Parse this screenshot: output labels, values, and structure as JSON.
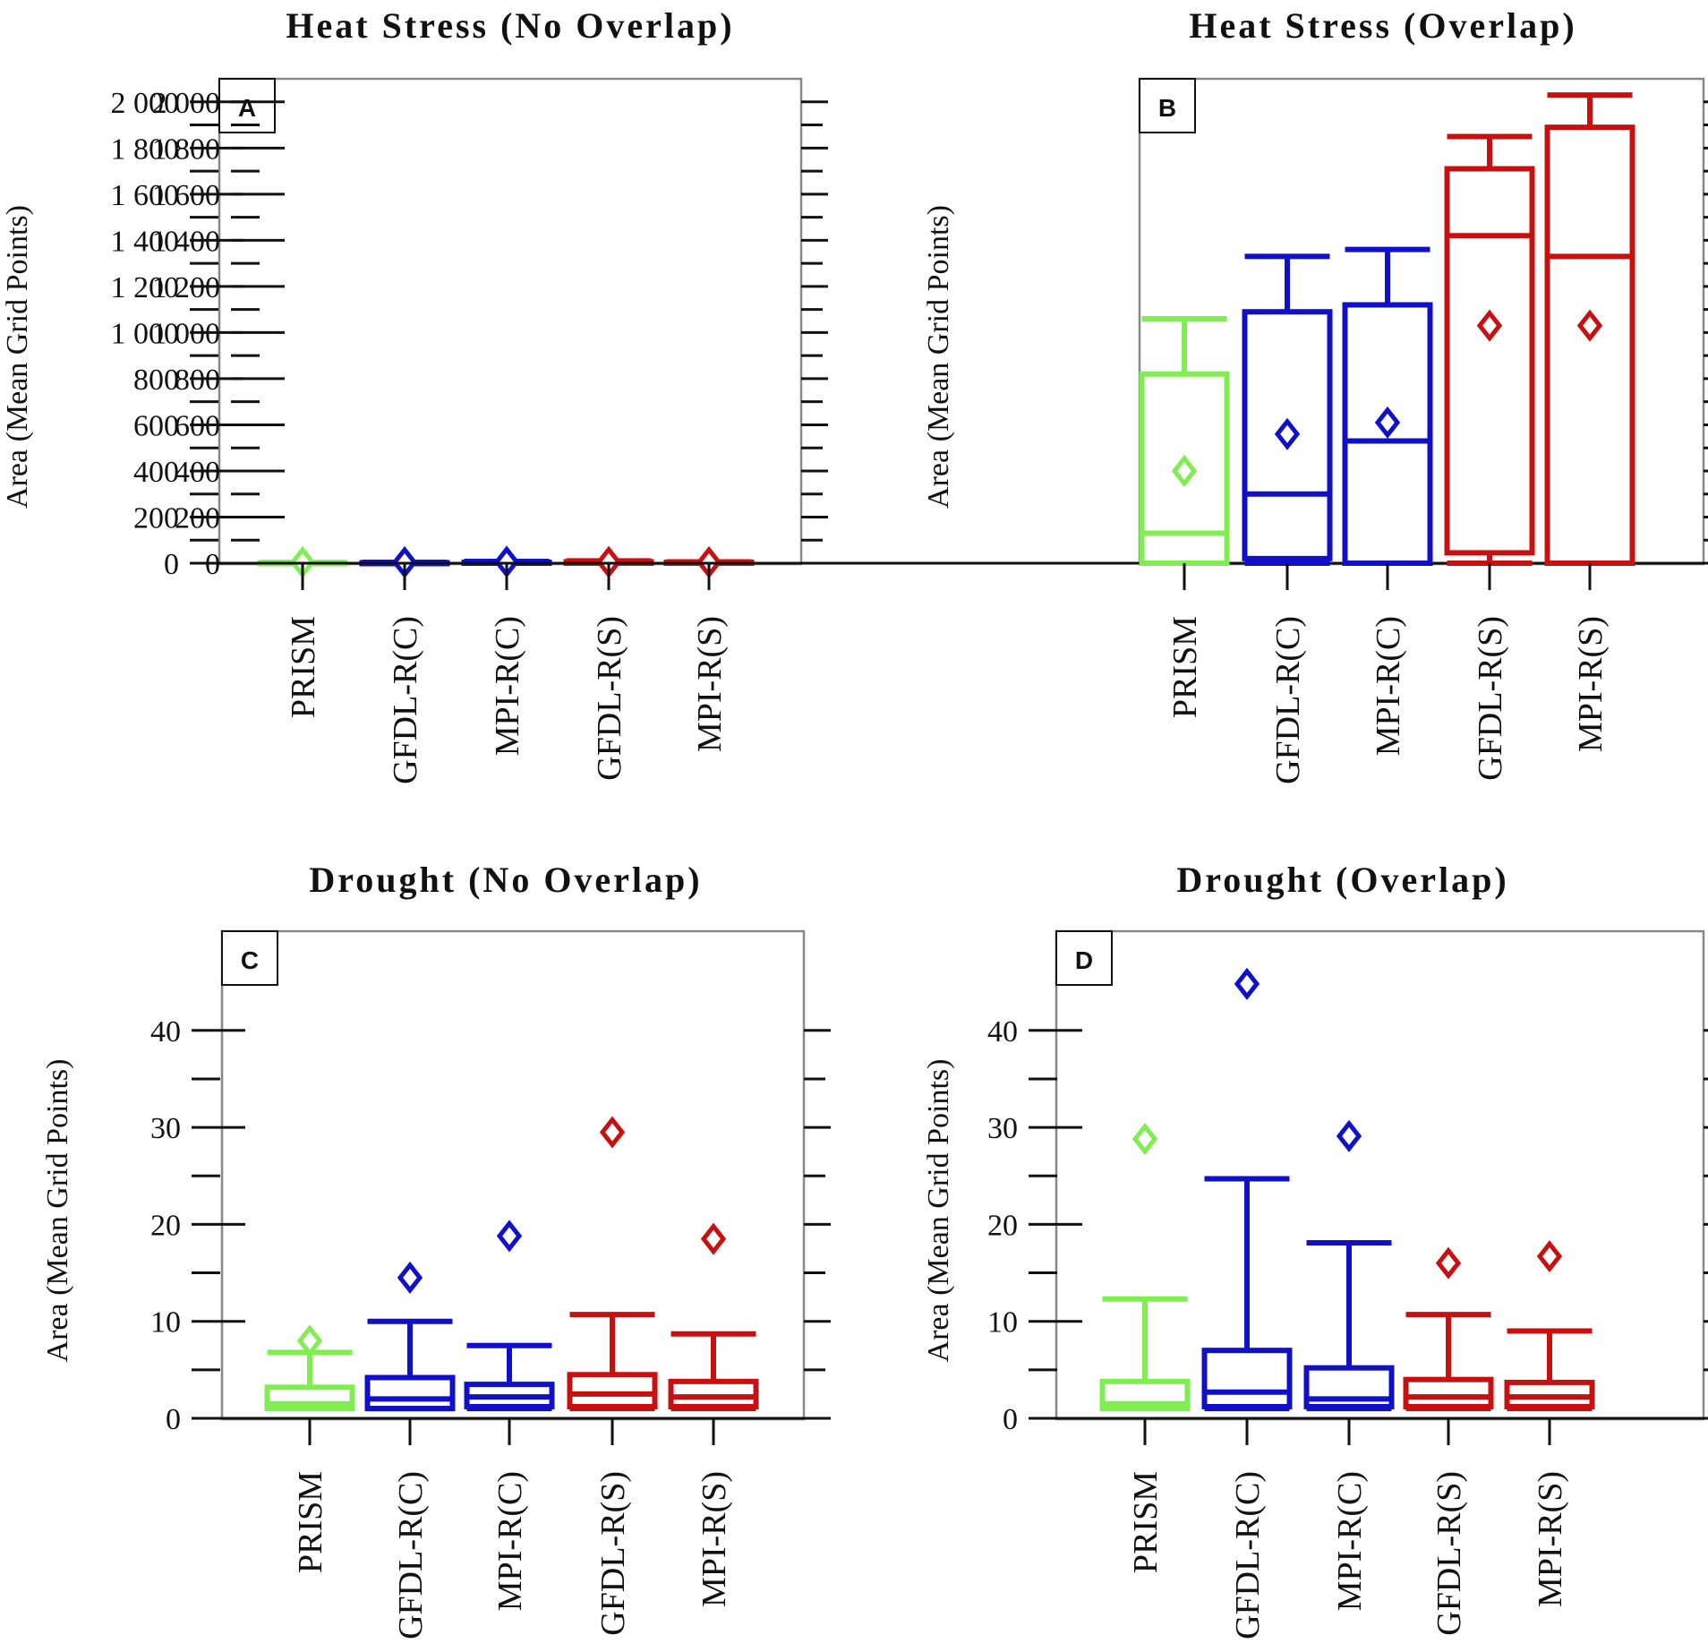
{
  "colors": {
    "PRISM": "#80ee50",
    "GFDL-R(C)": "#1010c8",
    "MPI-R(C)": "#1010c8",
    "GFDL-R(S)": "#c81010",
    "MPI-R(S)": "#c81010",
    "frame": "#888888",
    "ink": "#111111"
  },
  "chart_data": [
    {
      "type": "box",
      "panel": "A",
      "title": "Heat Stress (No Overlap)",
      "ylabel": "Area (Mean Grid Points)",
      "ylim": [
        0,
        2100
      ],
      "yticks": [
        0,
        200,
        400,
        600,
        800,
        1000,
        1200,
        1400,
        1600,
        1800,
        2000
      ],
      "ytick_labels": [
        "0",
        "200",
        "400",
        "600",
        "800",
        "1 000",
        "1 200",
        "1 400",
        "1 600",
        "1 800",
        "2 000"
      ],
      "minor_step": 100,
      "categories": [
        "PRISM",
        "GFDL-R(C)",
        "MPI-R(C)",
        "GFDL-R(S)",
        "MPI-R(S)"
      ],
      "boxes": [
        {
          "min": 0,
          "q1": 0,
          "median": 0,
          "q3": 2,
          "max": 4,
          "mean": 4
        },
        {
          "min": 0,
          "q1": 0,
          "median": 0,
          "q3": 2,
          "max": 4,
          "mean": 4
        },
        {
          "min": 0,
          "q1": 0,
          "median": 1,
          "q3": 4,
          "max": 8,
          "mean": 6
        },
        {
          "min": 0,
          "q1": 0,
          "median": 2,
          "q3": 6,
          "max": 10,
          "mean": 5
        },
        {
          "min": 0,
          "q1": 0,
          "median": 1,
          "q3": 4,
          "max": 6,
          "mean": 4
        }
      ]
    },
    {
      "type": "box",
      "panel": "B",
      "title": "Heat Stress (Overlap)",
      "ylabel": "Area (Mean Grid Points)",
      "ylim": [
        0,
        2100
      ],
      "yticks": [
        0,
        200,
        400,
        600,
        800,
        1000,
        1200,
        1400,
        1600,
        1800,
        2000
      ],
      "ytick_labels": [
        "0",
        "200",
        "400",
        "600",
        "800",
        "1 000",
        "1 200",
        "1 400",
        "1 600",
        "1 800",
        "2 000"
      ],
      "minor_step": 100,
      "categories": [
        "PRISM",
        "GFDL-R(C)",
        "MPI-R(C)",
        "GFDL-R(S)",
        "MPI-R(S)"
      ],
      "boxes": [
        {
          "min": 0,
          "q1": 0,
          "median": 130,
          "q3": 820,
          "max": 1060,
          "mean": 400
        },
        {
          "min": 0,
          "q1": 20,
          "median": 300,
          "q3": 1090,
          "max": 1330,
          "mean": 560
        },
        {
          "min": 0,
          "q1": 0,
          "median": 530,
          "q3": 1120,
          "max": 1360,
          "mean": 610
        },
        {
          "min": 0,
          "q1": 45,
          "median": 1420,
          "q3": 1710,
          "max": 1850,
          "mean": 1030
        },
        {
          "min": 0,
          "q1": 0,
          "median": 1330,
          "q3": 1890,
          "max": 2030,
          "mean": 1030
        }
      ]
    },
    {
      "type": "box",
      "panel": "C",
      "title": "Drought (No Overlap)",
      "ylabel": "Area (Mean Grid Points)",
      "ylim": [
        0,
        50
      ],
      "yticks": [
        0,
        10,
        20,
        30,
        40
      ],
      "ytick_labels": [
        "0",
        "10",
        "20",
        "30",
        "40"
      ],
      "minor_step": 5,
      "categories": [
        "PRISM",
        "GFDL-R(C)",
        "MPI-R(C)",
        "GFDL-R(S)",
        "MPI-R(S)"
      ],
      "boxes": [
        {
          "min": 1,
          "q1": 1,
          "median": 1.5,
          "q3": 3.2,
          "max": 6.8,
          "mean": 8
        },
        {
          "min": 1,
          "q1": 1,
          "median": 2,
          "q3": 4.2,
          "max": 10,
          "mean": 14.5
        },
        {
          "min": 1,
          "q1": 1.2,
          "median": 2.2,
          "q3": 3.5,
          "max": 7.5,
          "mean": 18.8
        },
        {
          "min": 1,
          "q1": 1.2,
          "median": 2.5,
          "q3": 4.5,
          "max": 10.7,
          "mean": 29.5
        },
        {
          "min": 1,
          "q1": 1.2,
          "median": 2.2,
          "q3": 3.8,
          "max": 8.7,
          "mean": 18.5
        }
      ]
    },
    {
      "type": "box",
      "panel": "D",
      "title": "Drought (Overlap)",
      "ylabel": "Area (Mean Grid Points)",
      "ylim": [
        0,
        50
      ],
      "yticks": [
        0,
        10,
        20,
        30,
        40
      ],
      "ytick_labels": [
        "0",
        "10",
        "20",
        "30",
        "40"
      ],
      "minor_step": 5,
      "categories": [
        "PRISM",
        "GFDL-R(C)",
        "MPI-R(C)",
        "GFDL-R(S)",
        "MPI-R(S)"
      ],
      "boxes": [
        {
          "min": 1,
          "q1": 1,
          "median": 1.5,
          "q3": 3.8,
          "max": 12.3,
          "mean": 28.8
        },
        {
          "min": 1,
          "q1": 1.2,
          "median": 2.7,
          "q3": 7,
          "max": 24.7,
          "mean": 44.8
        },
        {
          "min": 1,
          "q1": 1.2,
          "median": 2,
          "q3": 5.2,
          "max": 18.1,
          "mean": 29.1
        },
        {
          "min": 1,
          "q1": 1.2,
          "median": 2.2,
          "q3": 4,
          "max": 10.7,
          "mean": 16
        },
        {
          "min": 1,
          "q1": 1.2,
          "median": 2.2,
          "q3": 3.7,
          "max": 9,
          "mean": 16.7
        }
      ]
    }
  ]
}
